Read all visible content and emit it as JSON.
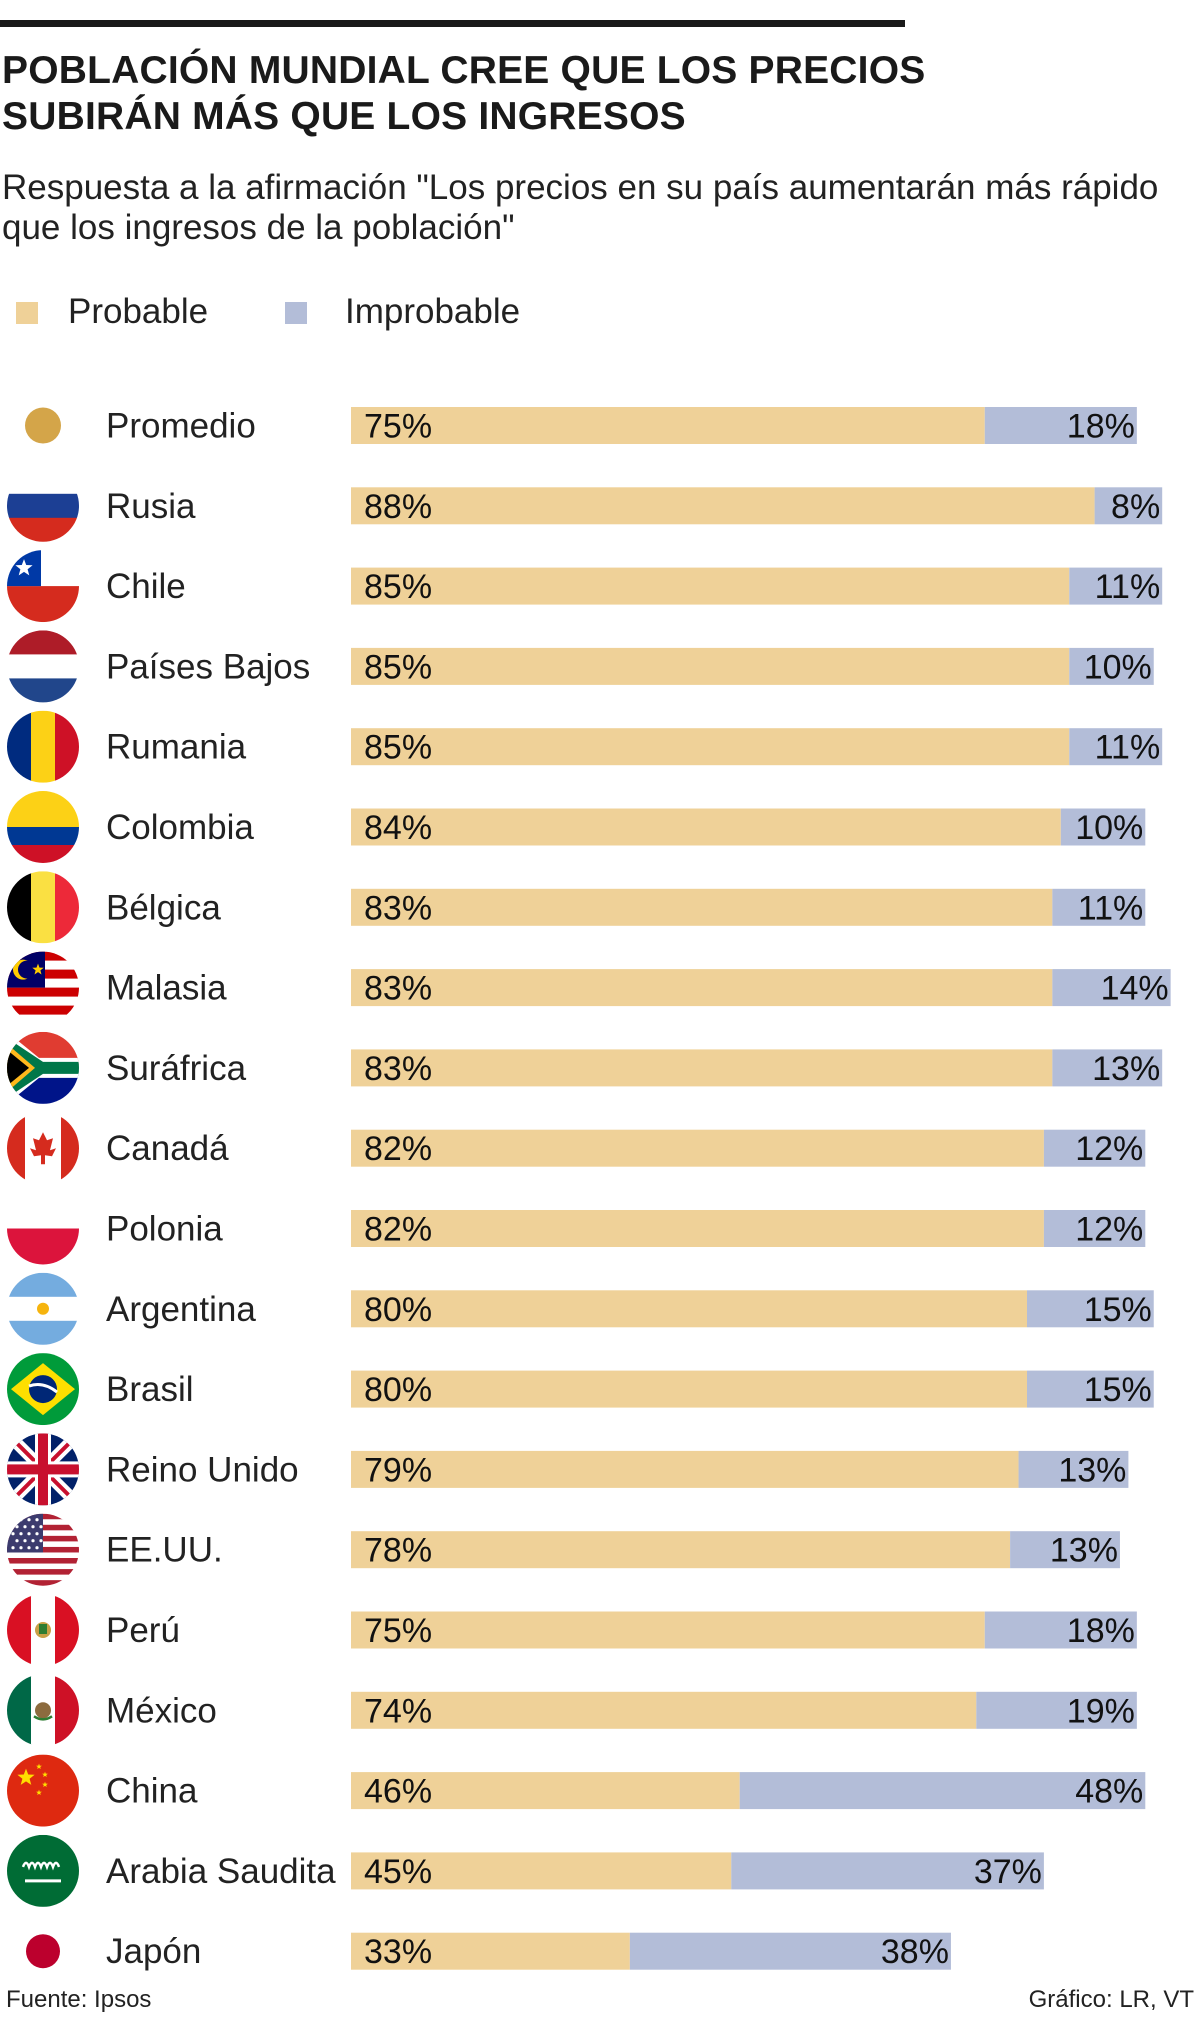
{
  "header": {
    "title_line1": "POBLACIÓN MUNDIAL CREE QUE LOS PRECIOS",
    "title_line2": "SUBIRÁN MÁS QUE LOS INGRESOS",
    "subtitle_line1": "Respuesta a la afirmación \"Los precios en su país aumentarán más rápido",
    "subtitle_line2": "que los ingresos de la población\""
  },
  "colors": {
    "probable": "#efd198",
    "improbable": "#b3bdd8",
    "promedio_dot": "#d4a549",
    "text": "#1a1a1a"
  },
  "chart_data": {
    "type": "bar",
    "stacked": true,
    "orientation": "horizontal",
    "title": "POBLACIÓN MUNDIAL CREE QUE LOS PRECIOS SUBIRÁN MÁS QUE LOS INGRESOS",
    "subtitle": "Respuesta a la afirmación \"Los precios en su país aumentarán más rápido que los ingresos de la población\"",
    "legend_position": "top-left",
    "grid": false,
    "xlim": [
      0,
      100
    ],
    "categories": [
      "Promedio",
      "Rusia",
      "Chile",
      "Países Bajos",
      "Rumania",
      "Colombia",
      "Bélgica",
      "Malasia",
      "Surafrica",
      "Canadá",
      "Polonia",
      "Argentina",
      "Brasil",
      "Reino Unido",
      "EE.UU.",
      "Perú",
      "México",
      "China",
      "Arabia Saudita",
      "Japón"
    ],
    "category_labels": [
      "Promedio",
      "Rusia",
      "Chile",
      "Países Bajos",
      "Rumania",
      "Colombia",
      "Bélgica",
      "Malasia",
      "Suráfrica",
      "Canadá",
      "Polonia",
      "Argentina",
      "Brasil",
      "Reino Unido",
      "EE.UU.",
      "Perú",
      "México",
      "China",
      "Arabia Saudita",
      "Japón"
    ],
    "series": [
      {
        "name": "Probable",
        "color": "#efd198",
        "values": [
          75,
          88,
          85,
          85,
          85,
          84,
          83,
          83,
          83,
          82,
          82,
          80,
          80,
          79,
          78,
          75,
          74,
          46,
          45,
          33
        ],
        "labels": [
          "75%",
          "88%",
          "85%",
          "85%",
          "85%",
          "84%",
          "83%",
          "83%",
          "83%",
          "82%",
          "82%",
          "80%",
          "80%",
          "79%",
          "78%",
          "75%",
          "74%",
          "46%",
          "45%",
          "33%"
        ]
      },
      {
        "name": "Improbable",
        "color": "#b3bdd8",
        "values": [
          18,
          8,
          11,
          10,
          11,
          10,
          11,
          14,
          13,
          12,
          12,
          15,
          15,
          13,
          13,
          18,
          19,
          48,
          37,
          38
        ],
        "labels": [
          "18%",
          "8%",
          "11%",
          "10%",
          "11%",
          "10%",
          "11%",
          "14%",
          "13%",
          "12%",
          "12%",
          "15%",
          "15%",
          "13%",
          "13%",
          "18%",
          "19%",
          "48%",
          "37%",
          "38%"
        ]
      }
    ],
    "flag_icons": [
      "promedio-dot-icon",
      "russia-flag-icon",
      "chile-flag-icon",
      "netherlands-flag-icon",
      "romania-flag-icon",
      "colombia-flag-icon",
      "belgium-flag-icon",
      "malaysia-flag-icon",
      "south-africa-flag-icon",
      "canada-flag-icon",
      "poland-flag-icon",
      "argentina-flag-icon",
      "brazil-flag-icon",
      "uk-flag-icon",
      "usa-flag-icon",
      "peru-flag-icon",
      "mexico-flag-icon",
      "china-flag-icon",
      "saudi-arabia-flag-icon",
      "japan-flag-icon"
    ]
  },
  "footer": {
    "source": "Fuente: Ipsos",
    "credit": "Gráfico: LR, VT"
  }
}
